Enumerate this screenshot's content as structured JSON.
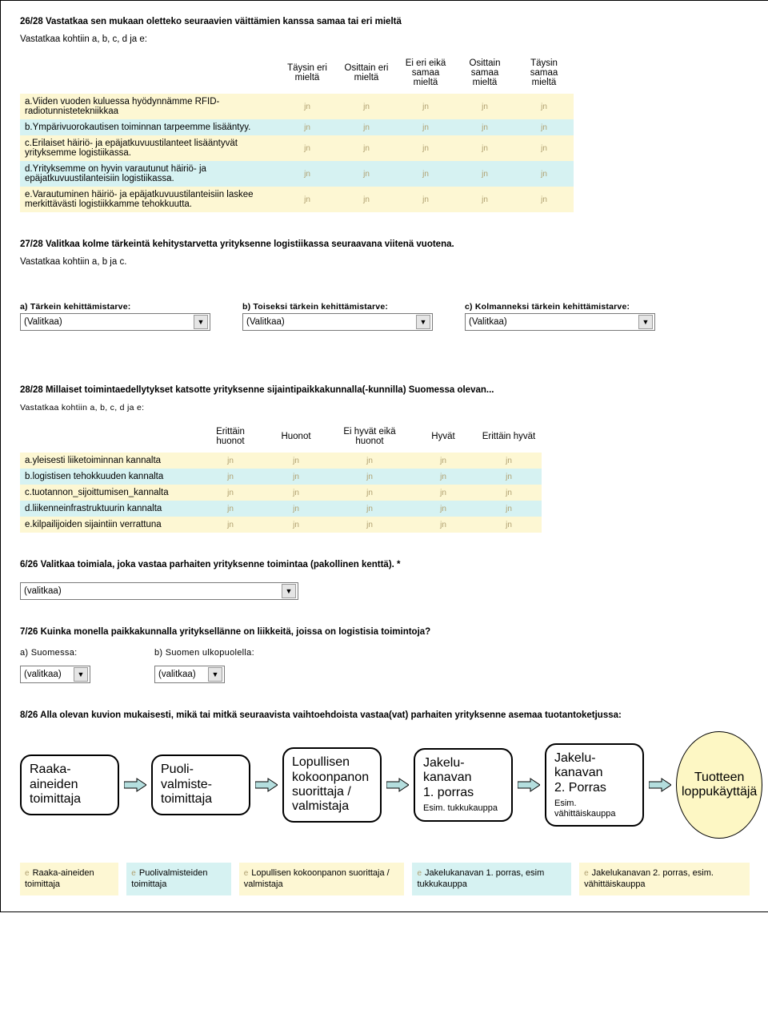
{
  "q26": {
    "title": "26/28 Vastatkaa sen mukaan oletteko seuraavien väittämien kanssa samaa tai eri mieltä",
    "instr": "Vastatkaa kohtiin a, b, c, d ja e:",
    "headers": [
      "Täysin eri mieltä",
      "Osittain eri mieltä",
      "Ei eri eikä samaa mieltä",
      "Osittain samaa mieltä",
      "Täysin samaa mieltä"
    ],
    "rows": [
      {
        "label": "a.Viiden vuoden kuluessa hyödynnämme RFID-radiotunnistetekniikkaa",
        "color": "yellow"
      },
      {
        "label": "b.Ympärivuorokautisen toiminnan tarpeemme lisääntyy.",
        "color": "blue"
      },
      {
        "label": "c.Erilaiset häiriö- ja epäjatkuvuustilanteet lisääntyvät yrityksemme logistiikassa.",
        "color": "yellow"
      },
      {
        "label": "d.Yrityksemme on hyvin varautunut häiriö- ja epäjatkuvuustilanteisiin logistiikassa.",
        "color": "blue"
      },
      {
        "label": "e.Varautuminen häiriö- ja epäjatkuvuustilanteisiin laskee merkittävästi logistiikkamme tehokkuutta.",
        "color": "yellow"
      }
    ],
    "radio_glyph": "jn"
  },
  "q27": {
    "title": "27/28 Valitkaa kolme tärkeintä kehitystarvetta yrityksenne logistiikassa seuraavana viitenä vuotena.",
    "instr": "Vastatkaa kohtiin a, b ja c.",
    "selects": [
      {
        "label": "a) Tärkein kehittämistarve:",
        "value": "(Valitkaa)"
      },
      {
        "label": "b) Toiseksi tärkein kehittämistarve:",
        "value": "(Valitkaa)"
      },
      {
        "label": "c) Kolmanneksi tärkein kehittämistarve:",
        "value": "(Valitkaa)"
      }
    ]
  },
  "q28": {
    "title": "28/28 Millaiset toimintaedellytykset katsotte yrityksenne sijaintipaikkakunnalla(-kunnilla) Suomessa olevan...",
    "instr": "Vastatkaa kohtiin a, b, c, d ja e:",
    "headers": [
      "Erittäin huonot",
      "Huonot",
      "Ei hyvät eikä huonot",
      "Hyvät",
      "Erittäin hyvät"
    ],
    "rows": [
      {
        "label": "a.yleisesti liiketoiminnan kannalta",
        "color": "yellow"
      },
      {
        "label": "b.logistisen tehokkuuden kannalta",
        "color": "blue"
      },
      {
        "label": "c.tuotannon_sijoittumisen_kannalta",
        "color": "yellow"
      },
      {
        "label": "d.liikenneinfrastruktuurin kannalta",
        "color": "blue"
      },
      {
        "label": "e.kilpailijoiden sijaintiin verrattuna",
        "color": "yellow"
      }
    ],
    "radio_glyph": "jn"
  },
  "q6": {
    "title": "6/26 Valitkaa toimiala, joka vastaa parhaiten yrityksenne toimintaa (pakollinen kenttä). *",
    "value": "(valitkaa)"
  },
  "q7": {
    "title": "7/26 Kuinka monella paikkakunnalla yrityksellänne on liikkeitä, joissa on logistisia toimintoja?",
    "a_label": "a) Suomessa:",
    "b_label": "b) Suomen ulkopuolella:",
    "value": "(valitkaa)"
  },
  "q8": {
    "title": "8/26 Alla olevan kuvion mukaisesti, mikä tai mitkä seuraavista vaihtoehdoista vastaa(vat) parhaiten yrityksenne asemaa tuotantoketjussa:",
    "boxes": [
      {
        "lines": [
          "Raaka-",
          "aineiden",
          "toimittaja"
        ]
      },
      {
        "lines": [
          "Puoli-",
          "valmiste-",
          "toimittaja"
        ]
      },
      {
        "lines": [
          "Lopullisen",
          "kokoonpanon",
          "suorittaja /",
          "valmistaja"
        ]
      },
      {
        "lines": [
          "Jakelu-",
          "kanavan",
          "1. porras"
        ],
        "sub": "Esim. tukkukauppa"
      },
      {
        "lines": [
          "Jakelu-",
          "kanavan",
          "2. Porras"
        ],
        "sub": "Esim. vähittäiskauppa"
      }
    ],
    "circle": "Tuotteen loppukäyttäjä",
    "checkboxes": [
      {
        "label": "Raaka-aineiden toimittaja",
        "color": "yellow"
      },
      {
        "label": "Puolivalmisteiden toimittaja",
        "color": "blue"
      },
      {
        "label": "Lopullisen kokoonpanon suorittaja / valmistaja",
        "color": "yellow"
      },
      {
        "label": "Jakelukanavan 1. porras, esim tukkukauppa",
        "color": "blue"
      },
      {
        "label": "Jakelukanavan 2. porras, esim. vähittäiskauppa",
        "color": "yellow"
      }
    ],
    "cb_glyph": "e"
  },
  "colors": {
    "yellow": "#fdf7d3",
    "blue": "#d6f2f2",
    "circle_fill": "#fdf7c4",
    "arrow_fill": "#b4dede",
    "glyph": "#b0a070"
  }
}
